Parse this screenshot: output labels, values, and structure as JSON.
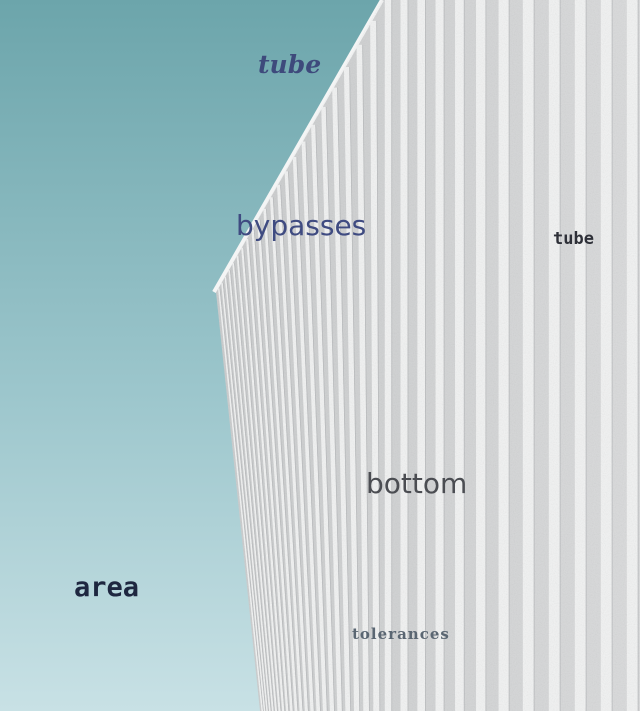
{
  "scene": {
    "description_icon": "building-facade-photo",
    "sky_colors": [
      "#6da7ad",
      "#c6e0e4"
    ],
    "wall_color": "#d4d6d7",
    "fin_color": "#f1f2f2"
  },
  "overlay_words": {
    "tube_top": "tube",
    "bypasses": "bypasses",
    "tube_right": "tube",
    "bottom": "bottom",
    "area": "area",
    "tolerances": "tolerances"
  }
}
